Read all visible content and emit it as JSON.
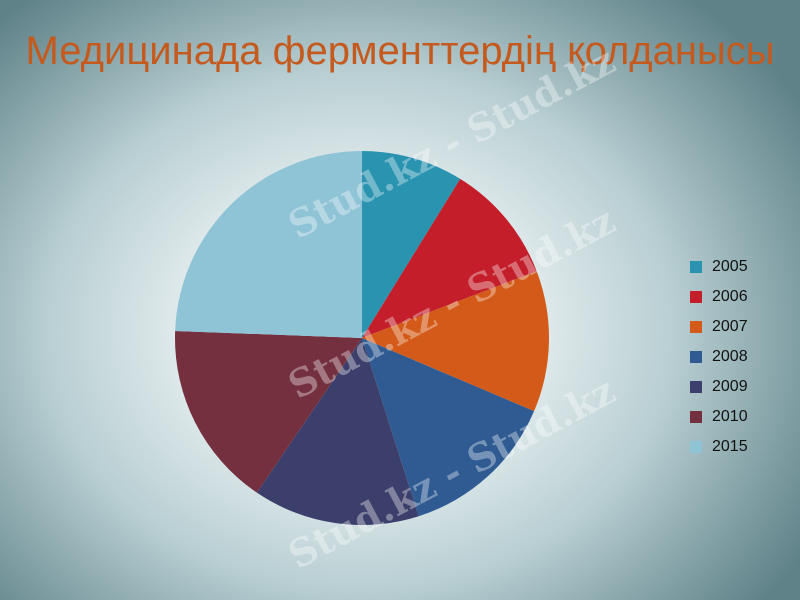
{
  "chart_data": {
    "type": "pie",
    "title": "Медицинада ферменттердің қолданысы",
    "categories": [
      "2005",
      "2006",
      "2007",
      "2008",
      "2009",
      "2010",
      "2015"
    ],
    "values": [
      8.8,
      10.4,
      12.2,
      13.7,
      14.4,
      16.1,
      24.4
    ],
    "colors": [
      "#2a93b0",
      "#c41e2a",
      "#d35a18",
      "#2f5b92",
      "#3c3f6b",
      "#74303f",
      "#8fc3d6"
    ],
    "legend": "right",
    "start": "12 o'clock, clockwise"
  },
  "watermark": "Stud.kz - Stud.kz"
}
